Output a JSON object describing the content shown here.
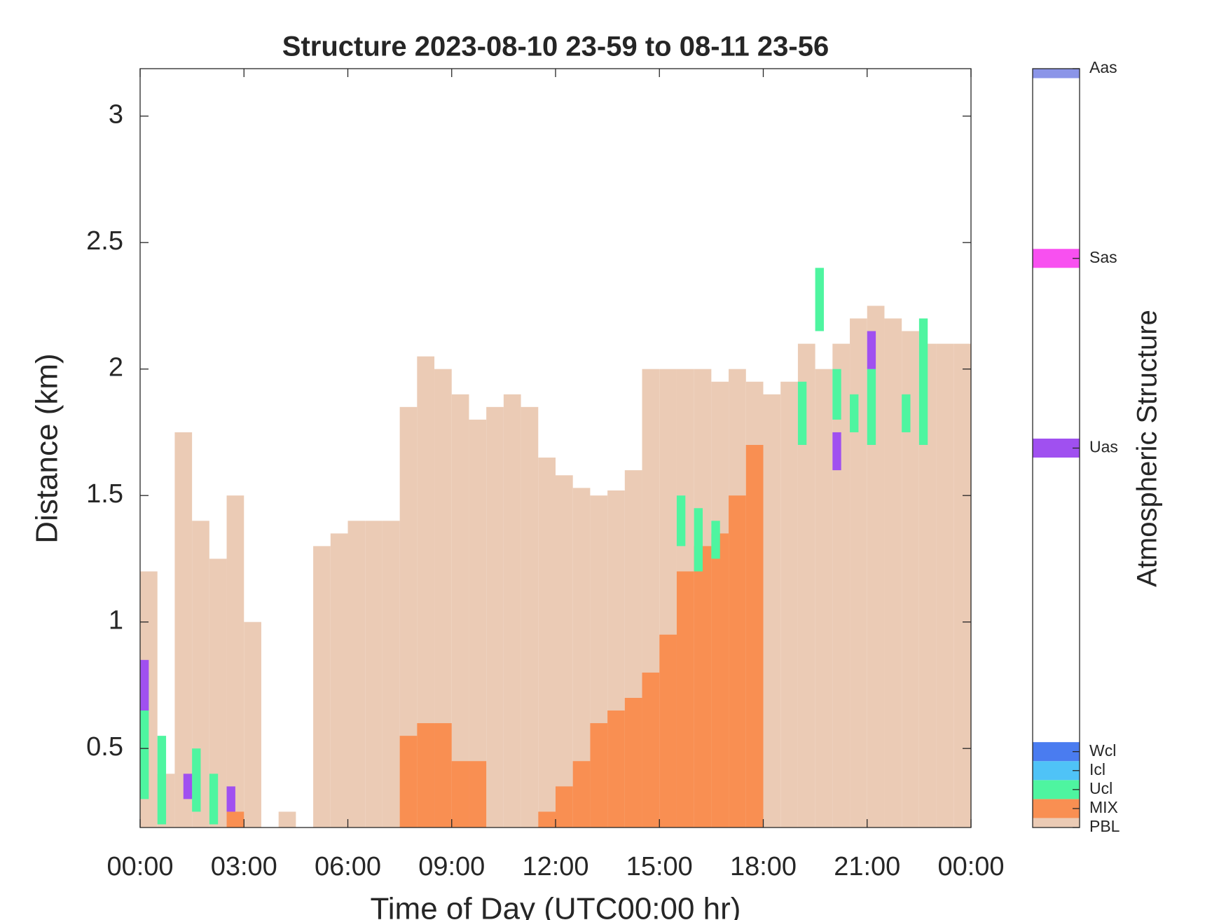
{
  "chart_data": {
    "type": "bar",
    "title": "Structure 2023-08-10 23-59 to 08-11 23-56",
    "xlabel": "Time of Day (UTC00:00 hr)",
    "ylabel": "Distance (km)",
    "xlim": [
      0,
      24
    ],
    "xticks": [
      {
        "value": 0,
        "label": "00:00"
      },
      {
        "value": 3,
        "label": "03:00"
      },
      {
        "value": 6,
        "label": "06:00"
      },
      {
        "value": 9,
        "label": "09:00"
      },
      {
        "value": 12,
        "label": "12:00"
      },
      {
        "value": 15,
        "label": "15:00"
      },
      {
        "value": 18,
        "label": "18:00"
      },
      {
        "value": 21,
        "label": "21:00"
      },
      {
        "value": 24,
        "label": "00:00"
      }
    ],
    "ylim": [
      0.1875,
      3.1875
    ],
    "yticks": [
      0.5,
      1,
      1.5,
      2,
      2.5,
      3
    ],
    "x": [
      0,
      0.5,
      1,
      1.5,
      2,
      2.5,
      3,
      3.5,
      4,
      4.5,
      5,
      5.5,
      6,
      6.5,
      7,
      7.5,
      8,
      8.5,
      9,
      9.5,
      10,
      10.5,
      11,
      11.5,
      12,
      12.5,
      13,
      13.5,
      14,
      14.5,
      15,
      15.5,
      16,
      16.5,
      17,
      17.5,
      18,
      18.5,
      19,
      19.5,
      20,
      20.5,
      21,
      21.5,
      22,
      22.5,
      23,
      23.5
    ],
    "series": [
      {
        "color": "#ebcbb5",
        "values": [
          1.2,
          0.4,
          1.75,
          1.4,
          1.25,
          1.5,
          1.0,
          null,
          0.25,
          null,
          1.3,
          1.35,
          1.4,
          1.4,
          1.4,
          1.85,
          2.05,
          2.0,
          1.9,
          1.8,
          1.85,
          1.9,
          1.85,
          1.65,
          1.58,
          1.53,
          1.5,
          1.52,
          1.6,
          2.0,
          2.0,
          2.0,
          2.0,
          1.95,
          2.0,
          1.95,
          1.9,
          1.95,
          2.1,
          2.0,
          2.1,
          2.2,
          2.25,
          2.2,
          2.15,
          2.1,
          2.1,
          2.1
        ]
      },
      {
        "color": "#f98f52",
        "values": [
          null,
          null,
          null,
          null,
          null,
          0.25,
          null,
          null,
          null,
          null,
          null,
          null,
          null,
          null,
          null,
          0.55,
          0.6,
          0.6,
          0.45,
          0.45,
          null,
          null,
          null,
          0.25,
          0.35,
          0.45,
          0.6,
          0.65,
          0.7,
          0.8,
          0.95,
          1.2,
          1.3,
          1.35,
          1.5,
          1.7,
          null,
          null,
          null,
          null,
          null,
          null,
          null,
          null,
          null,
          null,
          null,
          null
        ]
      }
    ],
    "layers": [
      {
        "color": "#4ef5a0",
        "x": [
          0,
          0.5,
          1.5,
          2,
          15.5,
          16,
          16.5,
          19,
          19.5,
          20,
          20.5,
          21,
          22,
          22.5
        ],
        "low": [
          0.3,
          0.2,
          0.25,
          0.2,
          1.3,
          1.2,
          1.25,
          1.7,
          2.15,
          1.8,
          1.75,
          1.7,
          1.75,
          1.7
        ],
        "high": [
          0.8,
          0.55,
          0.5,
          0.4,
          1.5,
          1.45,
          1.4,
          1.95,
          2.4,
          2.0,
          1.9,
          2.0,
          1.9,
          2.2
        ]
      },
      {
        "color": "#a050f0",
        "x": [
          0,
          1.25,
          2.5,
          20,
          21
        ],
        "low": [
          0.65,
          0.3,
          0.25,
          1.6,
          2.0
        ],
        "high": [
          0.85,
          0.4,
          0.35,
          1.75,
          2.15
        ]
      }
    ],
    "colorbar": {
      "label": "Atmospheric Structure",
      "lim": [
        0,
        40
      ],
      "ticks": [
        {
          "value": 0,
          "label": "PBL"
        },
        {
          "value": 1,
          "label": "MIX"
        },
        {
          "value": 2,
          "label": "Ucl"
        },
        {
          "value": 3,
          "label": "Icl"
        },
        {
          "value": 4,
          "label": "Wcl"
        },
        {
          "value": 20,
          "label": "Uas"
        },
        {
          "value": 30,
          "label": "Sas"
        },
        {
          "value": 40,
          "label": "Aas"
        }
      ],
      "colors": [
        "#ebcbb5",
        "#f98f52",
        "#4ef5a0",
        "#4fc3f7",
        "#4a7cf0",
        "#a050f0",
        "#f850f0",
        "#8b95e8"
      ]
    }
  }
}
